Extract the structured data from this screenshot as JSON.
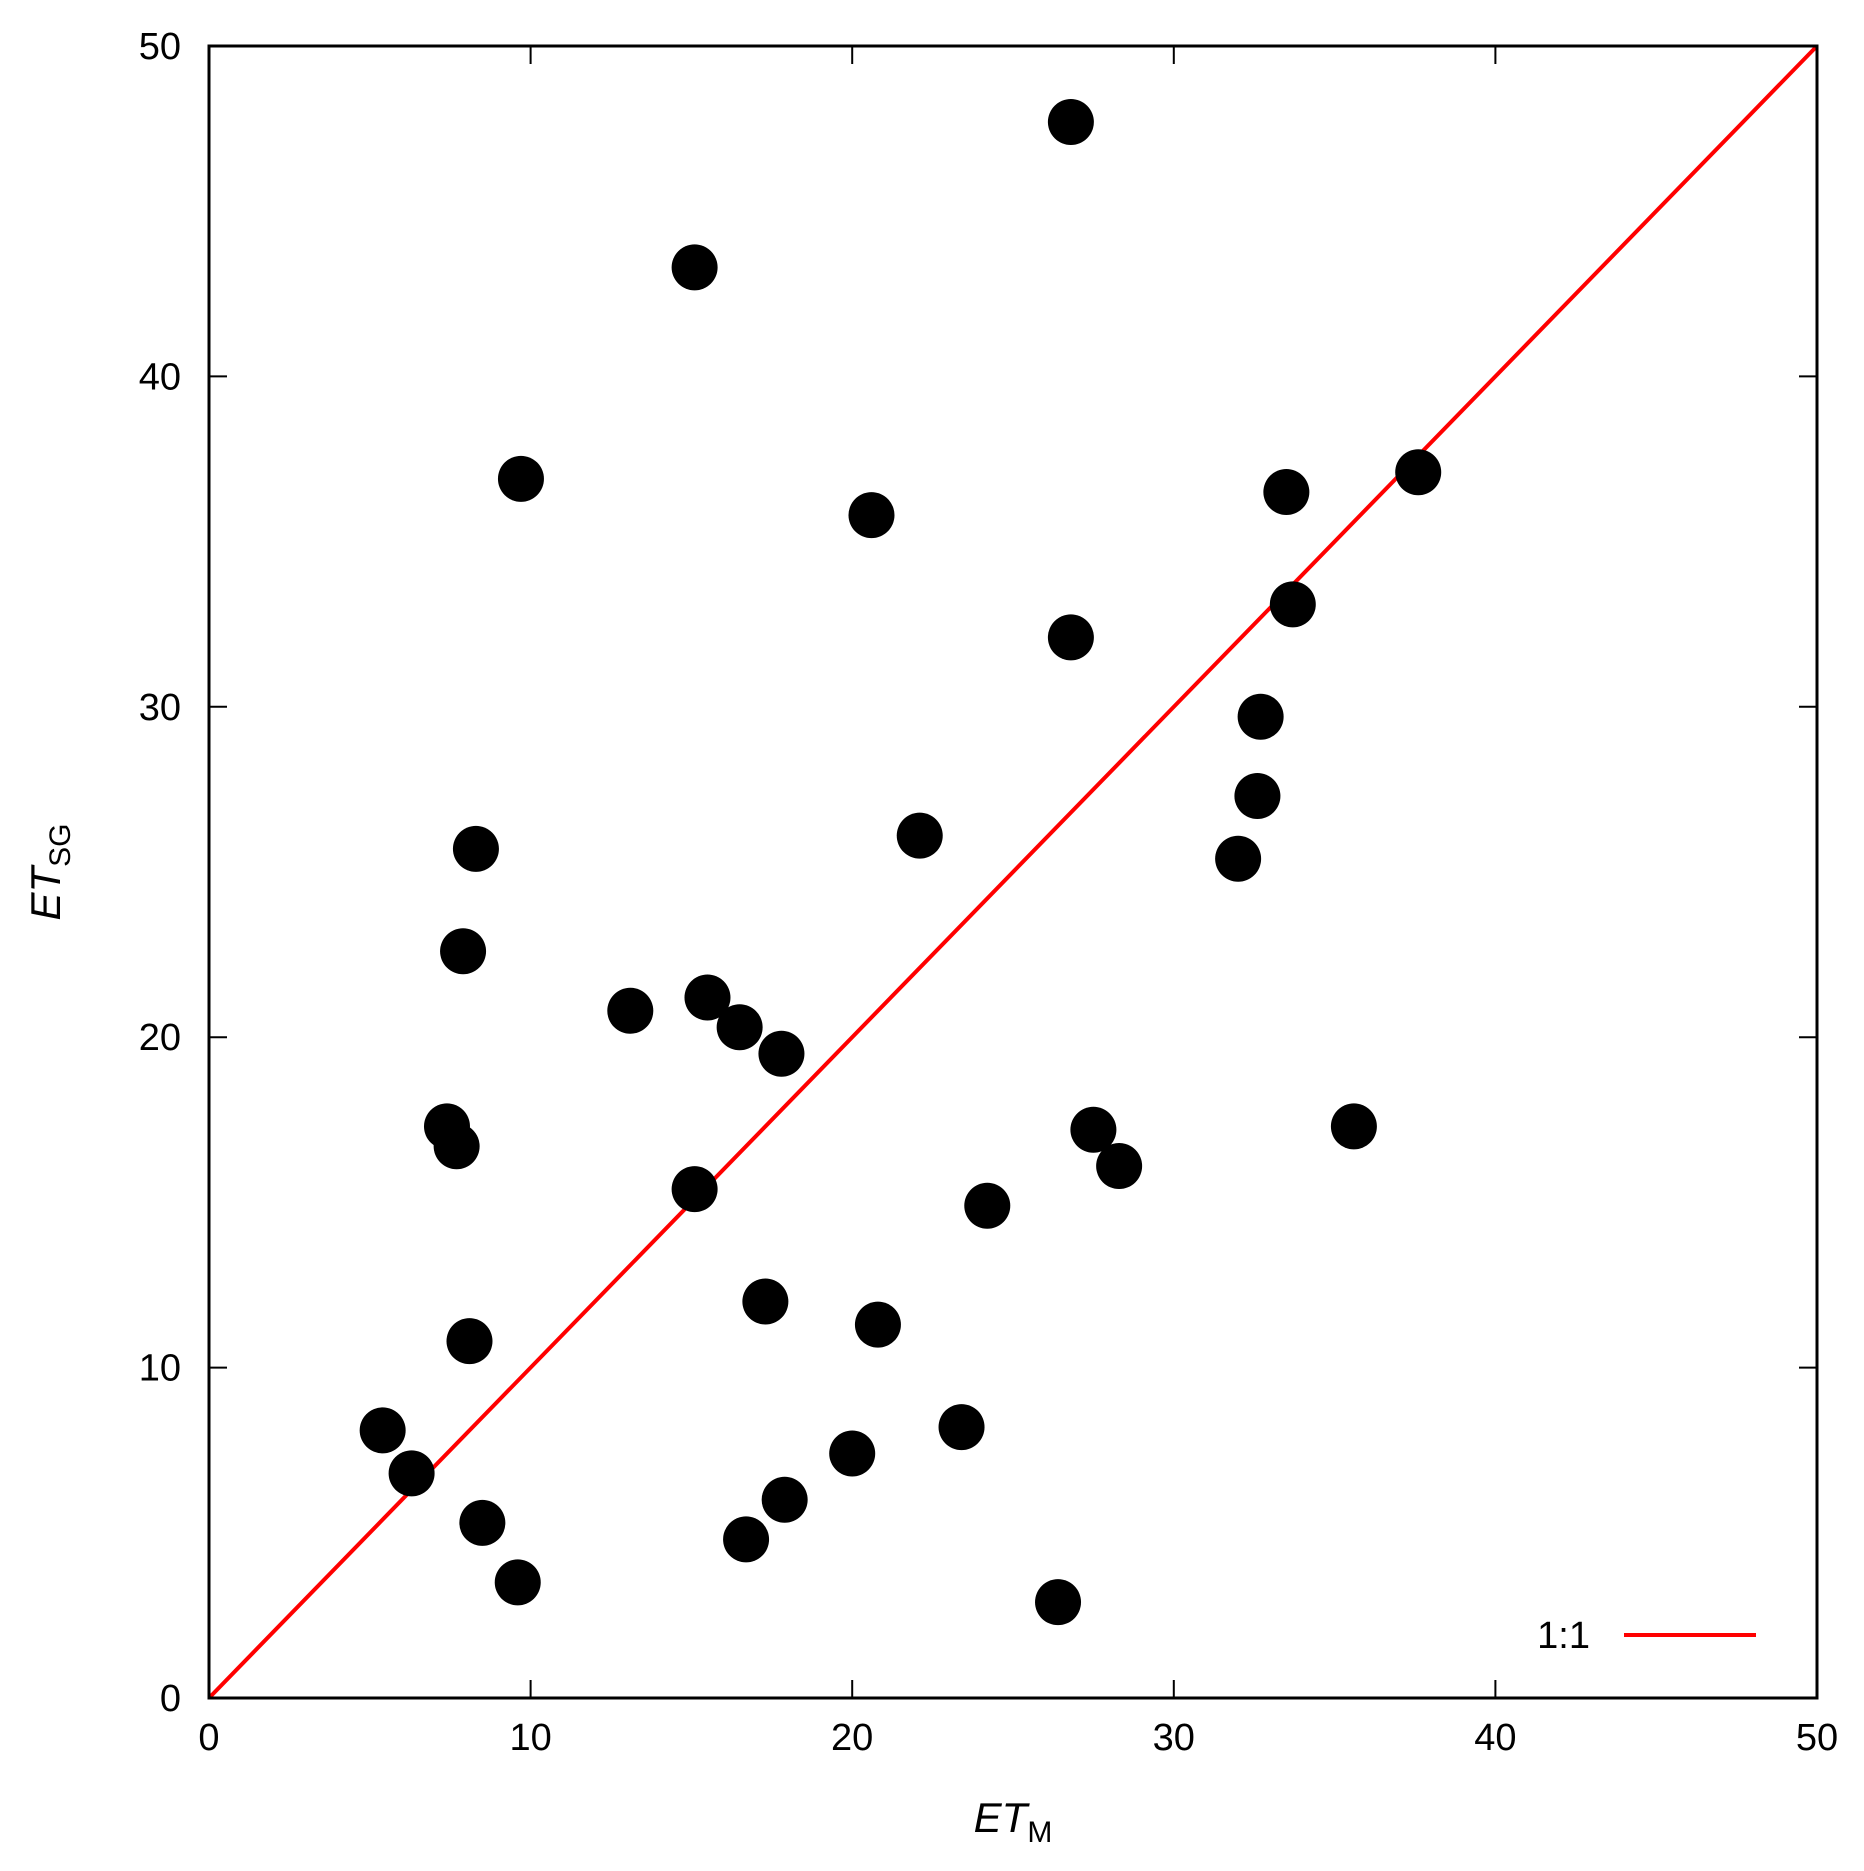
{
  "chart_data": {
    "type": "scatter",
    "title": "",
    "xlabel": {
      "main": "ET",
      "sub": "M"
    },
    "ylabel": {
      "main": "ET",
      "sub": "SG"
    },
    "xlim": [
      0,
      50
    ],
    "ylim": [
      0,
      50
    ],
    "xticks": [
      "0",
      "10",
      "20",
      "30",
      "40",
      "50"
    ],
    "yticks": [
      "0",
      "10",
      "20",
      "30",
      "40",
      "50"
    ],
    "grid": false,
    "legend_position": "bottom-right",
    "colors": {
      "points": "#000000",
      "reference_line": "#ff0000"
    },
    "reference_line": {
      "name": "1:1",
      "from": [
        0,
        0
      ],
      "to": [
        50,
        50
      ]
    },
    "series": [
      {
        "points": [
          [
            5.4,
            8.1
          ],
          [
            6.3,
            6.8
          ],
          [
            7.4,
            17.3
          ],
          [
            7.7,
            16.7
          ],
          [
            7.9,
            22.6
          ],
          [
            8.1,
            10.8
          ],
          [
            8.3,
            25.7
          ],
          [
            8.5,
            5.3
          ],
          [
            9.6,
            3.5
          ],
          [
            9.7,
            36.9
          ],
          [
            13.1,
            20.8
          ],
          [
            15.1,
            43.3
          ],
          [
            15.1,
            15.4
          ],
          [
            15.5,
            21.2
          ],
          [
            16.5,
            20.3
          ],
          [
            16.7,
            4.8
          ],
          [
            17.3,
            12.0
          ],
          [
            17.8,
            19.5
          ],
          [
            17.9,
            6.0
          ],
          [
            20.0,
            7.4
          ],
          [
            20.6,
            35.8
          ],
          [
            20.8,
            11.3
          ],
          [
            22.1,
            26.1
          ],
          [
            23.4,
            8.2
          ],
          [
            24.2,
            14.9
          ],
          [
            26.4,
            2.9
          ],
          [
            26.8,
            47.7
          ],
          [
            26.8,
            32.1
          ],
          [
            27.5,
            17.2
          ],
          [
            28.3,
            16.1
          ],
          [
            32.0,
            25.4
          ],
          [
            32.6,
            27.3
          ],
          [
            32.7,
            29.7
          ],
          [
            33.5,
            36.5
          ],
          [
            33.7,
            33.1
          ],
          [
            35.6,
            17.3
          ],
          [
            37.6,
            37.1
          ]
        ]
      }
    ]
  }
}
